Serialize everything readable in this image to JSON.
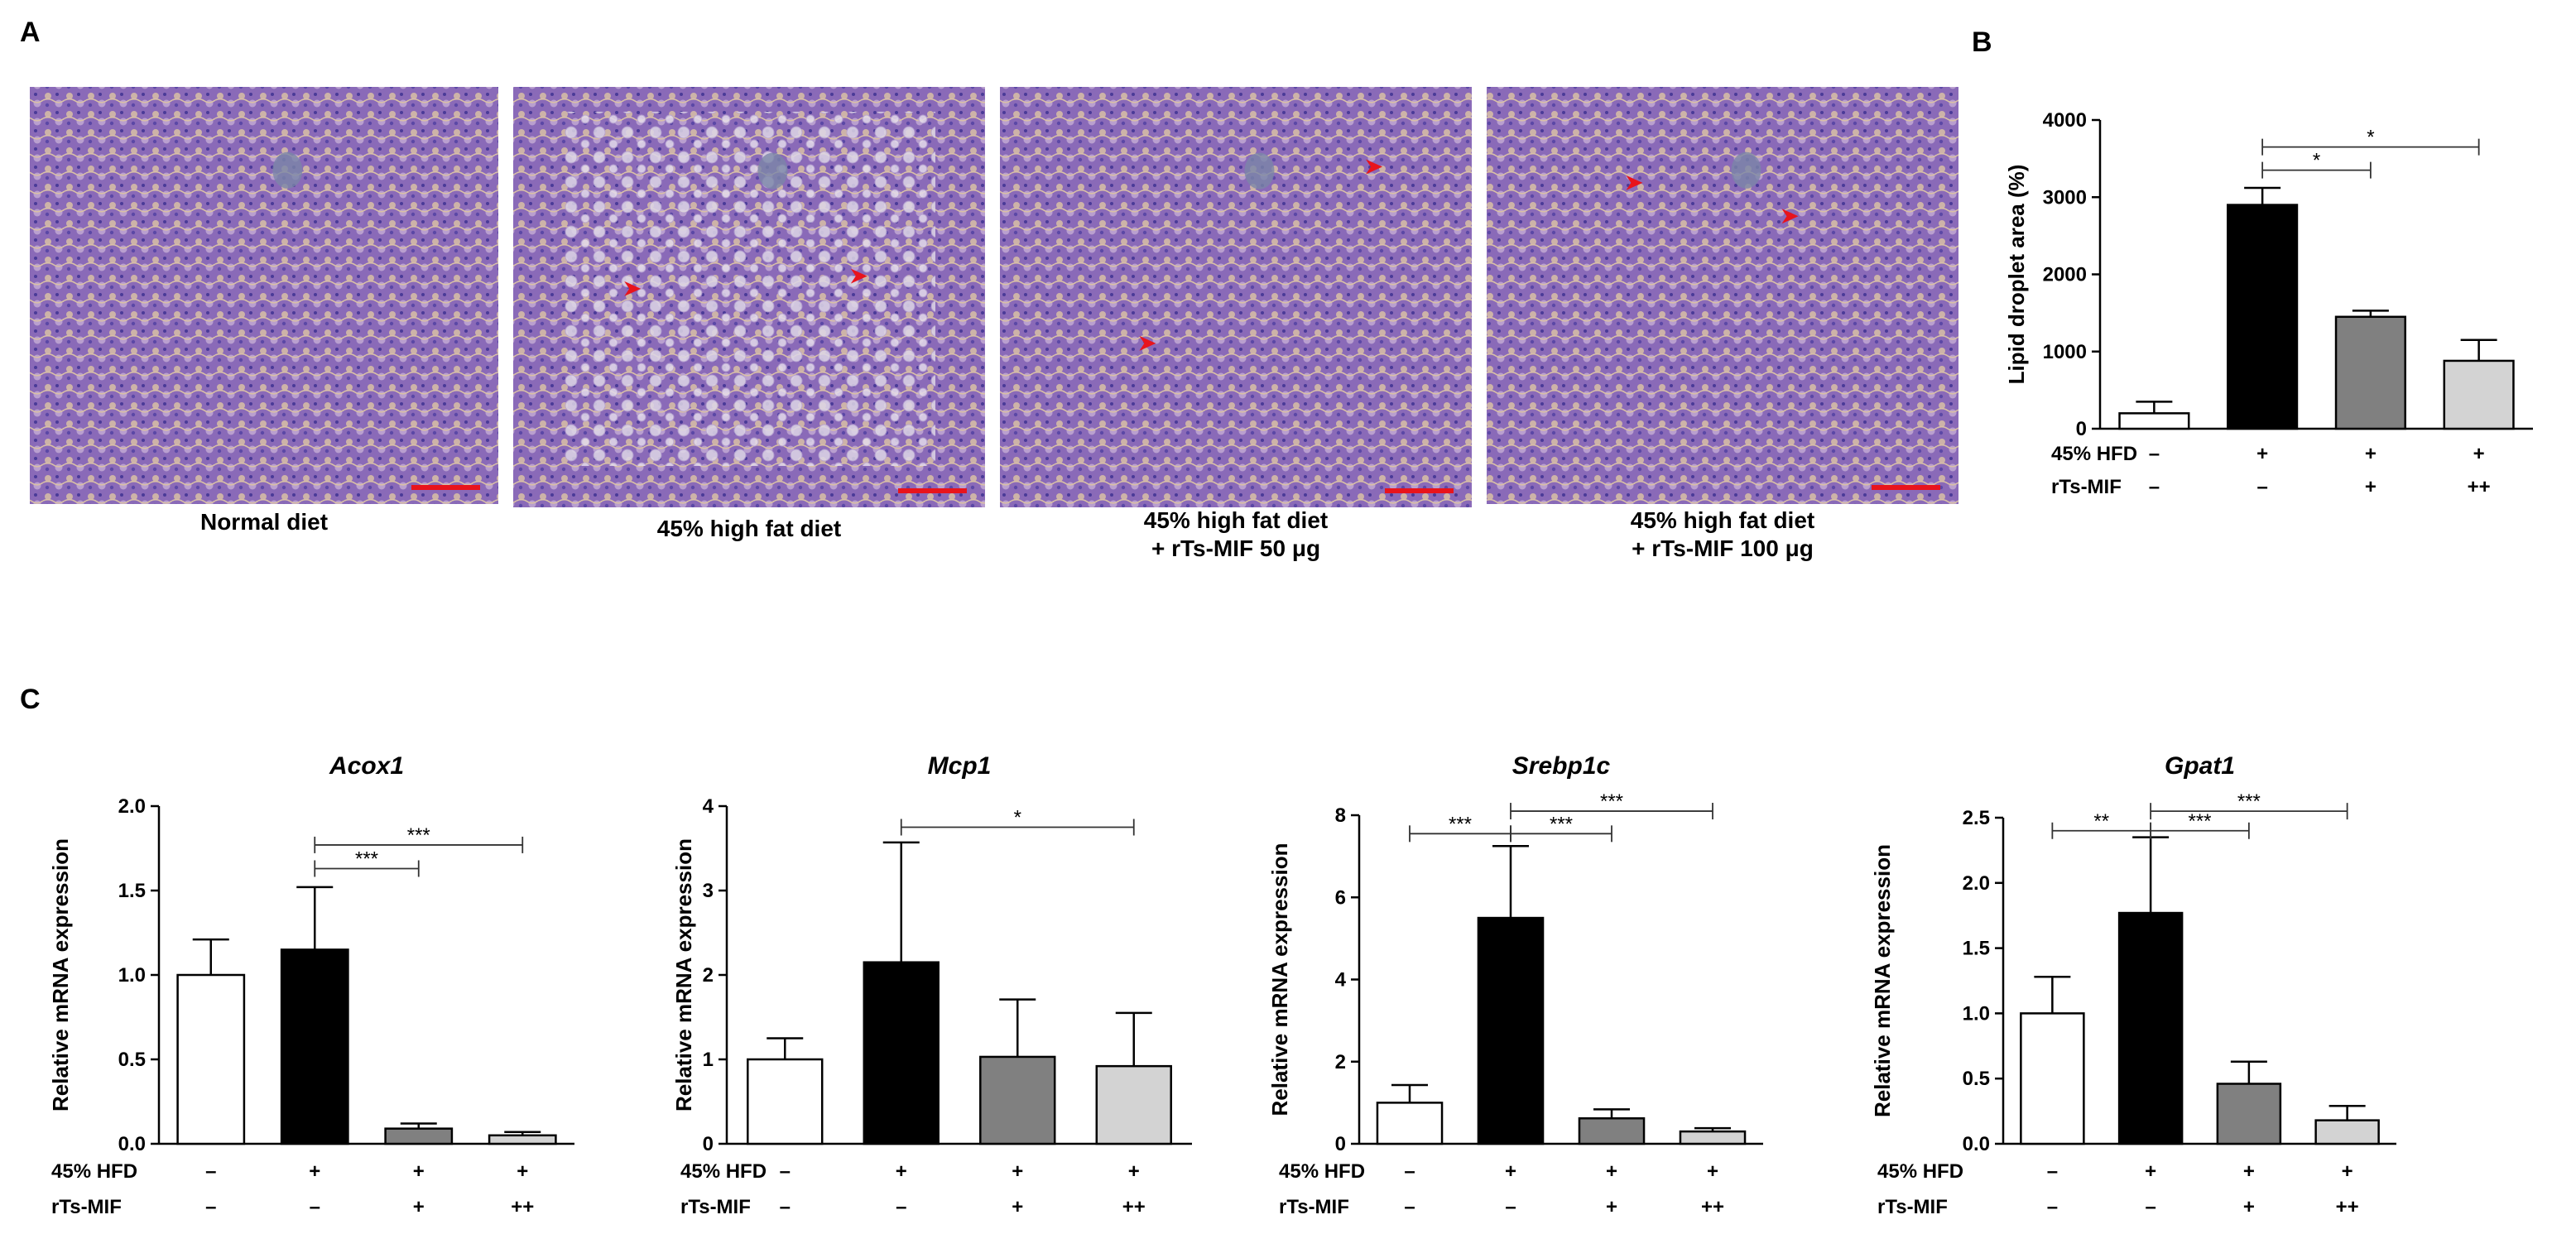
{
  "panels": {
    "a": "A",
    "b": "B",
    "c": "C"
  },
  "micrographs": [
    {
      "caption": [
        "Normal diet"
      ],
      "arrows": []
    },
    {
      "caption": [
        "45% high fat diet"
      ],
      "arrows": [
        [
          0.26,
          0.48
        ],
        [
          0.74,
          0.45
        ]
      ]
    },
    {
      "caption": [
        "45% high fat diet",
        "+ rTs-MIF 50 μg"
      ],
      "arrows": [
        [
          0.8,
          0.19
        ],
        [
          0.32,
          0.61
        ]
      ]
    },
    {
      "caption": [
        "45% high fat diet",
        "+ rTs-MIF 100 μg"
      ],
      "arrows": [
        [
          0.32,
          0.23
        ],
        [
          0.65,
          0.31
        ]
      ]
    }
  ],
  "row_labels": [
    "45% HFD",
    "rTs-MIF"
  ],
  "colors": {
    "bars": [
      "#ffffff",
      "#000000",
      "#808080",
      "#d3d3d3"
    ],
    "scale_bar": "#e8141c",
    "arrow": "#e8141c",
    "tissue": "#8a6ab8"
  },
  "chart_data": [
    {
      "type": "bar",
      "title": "",
      "ylabel": "Lipid droplet area (%)",
      "ylim": [
        0,
        4000
      ],
      "yticks": [
        0,
        1000,
        2000,
        3000,
        4000
      ],
      "values": [
        200,
        2900,
        1450,
        880
      ],
      "errors": [
        150,
        220,
        80,
        270
      ],
      "hfd": [
        "–",
        "+",
        "+",
        "+"
      ],
      "mif": [
        "–",
        "–",
        "+",
        "++"
      ],
      "significance": [
        {
          "from": 1,
          "to": 2,
          "y": 3350,
          "label": "*"
        },
        {
          "from": 1,
          "to": 3,
          "y": 3650,
          "label": "*"
        }
      ]
    },
    {
      "type": "bar",
      "title": "Acox1",
      "ylabel": "Relative mRNA expression",
      "ylim": [
        0,
        2.0
      ],
      "yticks": [
        "0.0",
        "0.5",
        "1.0",
        "1.5",
        "2.0"
      ],
      "values": [
        1.0,
        1.15,
        0.09,
        0.05
      ],
      "errors": [
        0.21,
        0.37,
        0.03,
        0.02
      ],
      "hfd": [
        "–",
        "+",
        "+",
        "+"
      ],
      "mif": [
        "–",
        "–",
        "+",
        "++"
      ],
      "significance": [
        {
          "from": 1,
          "to": 2,
          "y": 1.63,
          "label": "***"
        },
        {
          "from": 1,
          "to": 3,
          "y": 1.77,
          "label": "***"
        }
      ]
    },
    {
      "type": "bar",
      "title": "Mcp1",
      "ylabel": "Relative mRNA expression",
      "ylim": [
        0,
        4
      ],
      "yticks": [
        "0",
        "1",
        "2",
        "3",
        "4"
      ],
      "values": [
        1.0,
        2.15,
        1.03,
        0.92
      ],
      "errors": [
        0.25,
        1.42,
        0.68,
        0.63
      ],
      "hfd": [
        "–",
        "+",
        "+",
        "+"
      ],
      "mif": [
        "–",
        "–",
        "+",
        "++"
      ],
      "significance": [
        {
          "from": 1,
          "to": 3,
          "y": 3.75,
          "label": "*"
        }
      ]
    },
    {
      "type": "bar",
      "title": "Srebp1c",
      "ylabel": "Relative mRNA expression",
      "ylim": [
        0,
        8
      ],
      "yticks": [
        "0",
        "2",
        "4",
        "6",
        "8"
      ],
      "values": [
        1.0,
        5.5,
        0.62,
        0.3
      ],
      "errors": [
        0.43,
        1.75,
        0.22,
        0.08
      ],
      "hfd": [
        "–",
        "+",
        "+",
        "+"
      ],
      "mif": [
        "–",
        "–",
        "+",
        "++"
      ],
      "significance": [
        {
          "from": 0,
          "to": 1,
          "y": 7.55,
          "label": "***"
        },
        {
          "from": 1,
          "to": 2,
          "y": 7.55,
          "label": "***"
        },
        {
          "from": 1,
          "to": 3,
          "y": 8.1,
          "label": "***"
        }
      ]
    },
    {
      "type": "bar",
      "title": "Gpat1",
      "ylabel": "Relative mRNA expression",
      "ylim": [
        0,
        2.5
      ],
      "yticks": [
        "0.0",
        "0.5",
        "1.0",
        "1.5",
        "2.0",
        "2.5"
      ],
      "values": [
        1.0,
        1.77,
        0.46,
        0.18
      ],
      "errors": [
        0.28,
        0.58,
        0.17,
        0.11
      ],
      "hfd": [
        "–",
        "+",
        "+",
        "+"
      ],
      "mif": [
        "–",
        "–",
        "+",
        "++"
      ],
      "significance": [
        {
          "from": 0,
          "to": 1,
          "y": 2.4,
          "label": "**"
        },
        {
          "from": 1,
          "to": 2,
          "y": 2.4,
          "label": "***"
        },
        {
          "from": 1,
          "to": 3,
          "y": 2.55,
          "label": "***"
        }
      ]
    }
  ]
}
